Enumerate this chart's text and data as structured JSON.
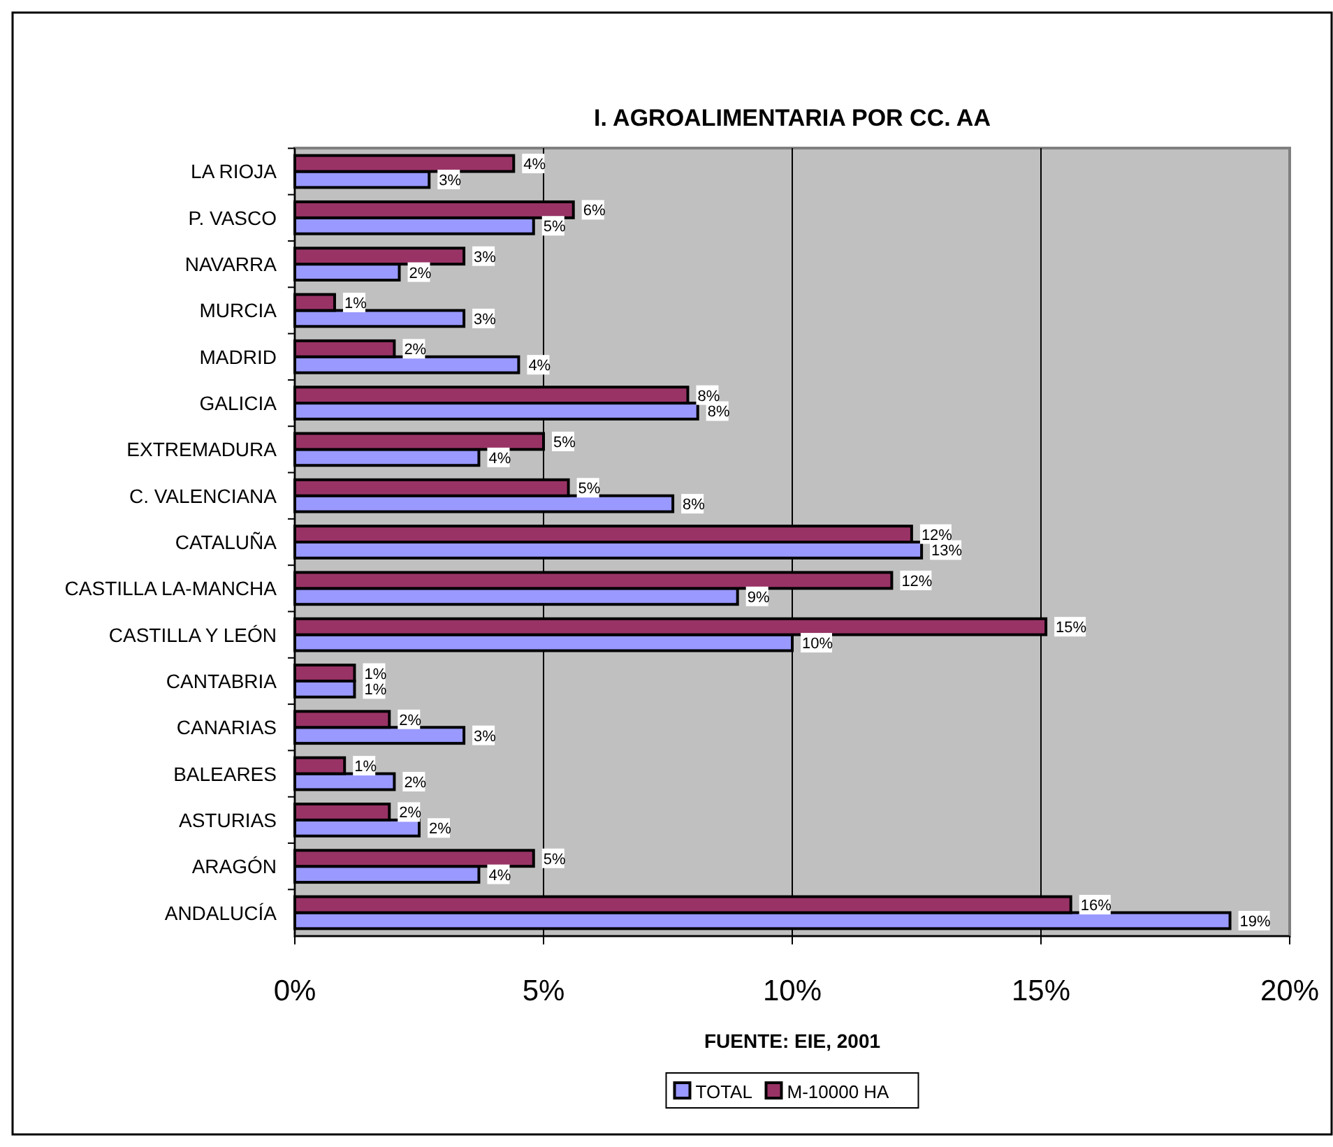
{
  "chart_data": {
    "type": "bar",
    "orientation": "horizontal",
    "title": "I. AGROALIMENTARIA POR CC. AA",
    "categories": [
      "LA RIOJA",
      "P. VASCO",
      "NAVARRA",
      "MURCIA",
      "MADRID",
      "GALICIA",
      "EXTREMADURA",
      "C. VALENCIANA",
      "CATALUÑA",
      "CASTILLA LA-MANCHA",
      "CASTILLA Y LEÓN",
      "CANTABRIA",
      "CANARIAS",
      "BALEARES",
      "ASTURIAS",
      "ARAGÓN",
      "ANDALUCÍA"
    ],
    "series": [
      {
        "name": "TOTAL",
        "color": "#9999ff",
        "values": [
          2.7,
          4.8,
          2.1,
          3.4,
          4.5,
          8.1,
          3.7,
          7.6,
          12.6,
          8.9,
          10.0,
          1.2,
          3.4,
          2.0,
          2.5,
          3.7,
          18.8
        ],
        "value_labels": [
          "3%",
          "5%",
          "2%",
          "3%",
          "4%",
          "8%",
          "4%",
          "8%",
          "13%",
          "9%",
          "10%",
          "1%",
          "3%",
          "2%",
          "2%",
          "4%",
          "19%"
        ]
      },
      {
        "name": "M-10000 HA",
        "color": "#993366",
        "values": [
          4.4,
          5.6,
          3.4,
          0.8,
          2.0,
          7.9,
          5.0,
          5.5,
          12.4,
          12.0,
          15.1,
          1.2,
          1.9,
          1.0,
          1.9,
          4.8,
          15.6
        ],
        "value_labels": [
          "4%",
          "6%",
          "3%",
          "1%",
          "2%",
          "8%",
          "5%",
          "5%",
          "12%",
          "12%",
          "15%",
          "1%",
          "2%",
          "1%",
          "2%",
          "5%",
          "16%"
        ]
      }
    ],
    "xlim": [
      0,
      20
    ],
    "xticks": [
      {
        "value": 0,
        "label": "0%"
      },
      {
        "value": 5,
        "label": "5%"
      },
      {
        "value": 10,
        "label": "10%"
      },
      {
        "value": 15,
        "label": "15%"
      },
      {
        "value": 20,
        "label": "20%"
      }
    ],
    "grid": "x",
    "legend": "bottom",
    "annotations": [
      "FUENTE: EIE, 2001"
    ]
  }
}
